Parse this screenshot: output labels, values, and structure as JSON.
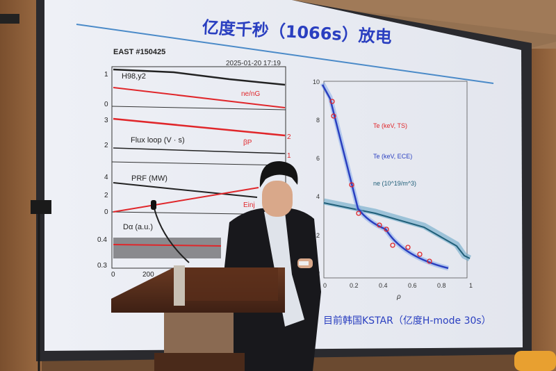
{
  "slide": {
    "title": "亿度千秒（1066s）放电",
    "left_figure": {
      "shot_label": "EAST #150425",
      "timestamp": "2025-01-20 17:19",
      "panels": [
        {
          "labels": [
            "H98,y2",
            "ne/nG"
          ],
          "yticks": [
            "1",
            "0"
          ]
        },
        {
          "labels": [
            "Flux loop (V · s)",
            "βP"
          ],
          "yticks": [
            "3",
            "2"
          ],
          "right_ticks": [
            "2",
            "1"
          ]
        },
        {
          "labels": [
            "PRF (MW)",
            "Einj"
          ],
          "yticks": [
            "4",
            "2",
            "0"
          ]
        },
        {
          "labels": [
            "Dα (a.u.)"
          ],
          "yticks": [
            "0.4",
            "0.3"
          ]
        }
      ],
      "xticks": [
        "0",
        "200"
      ]
    },
    "right_figure": {
      "legend": [
        "Te (keV, TS)",
        "Te (keV, ECE)",
        "ne (10^19/m^3)"
      ],
      "yticks": [
        "10",
        "8",
        "6",
        "4",
        "2",
        "0"
      ],
      "xticks": [
        "0",
        "0.2",
        "0.4",
        "0.6",
        "0.8",
        "1"
      ],
      "xlabel": "ρ",
      "caption": "目前韩国KSTAR（亿度H-mode 30s）"
    }
  },
  "colors": {
    "accent_blue": "#2a3fc0",
    "red": "#e0262a",
    "teal": "#1f5e78",
    "wood": "#8a5a35"
  }
}
